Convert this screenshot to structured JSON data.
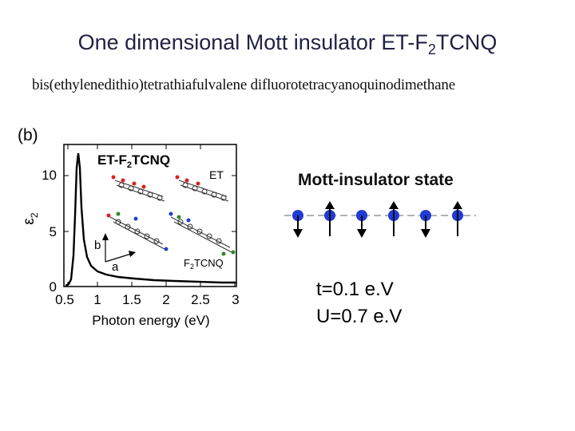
{
  "title": {
    "prefix": "One dimensional Mott insulator ET-F",
    "sub": "2",
    "suffix": "TCNQ"
  },
  "full_name": "bis(ethylenedithio)tetrathiafulvalene difluorotetracyanoquinodimethane",
  "panel_label": "(b)",
  "plot": {
    "inset_title": {
      "prefix": "ET-F",
      "sub": "2",
      "suffix": "TCNQ"
    },
    "label_et": "ET",
    "label_f2tcnq": {
      "prefix": "F",
      "sub": "2",
      "suffix": "TCNQ"
    },
    "axis_b": "b",
    "axis_a": "a",
    "xlabel": "Photon energy (eV)",
    "ylabel_symbol": "ε",
    "ylabel_sub": "2",
    "xticks": [
      "0.5",
      "1",
      "1.5",
      "2",
      "2.5",
      "3"
    ],
    "yticks": [
      "0",
      "5",
      "10"
    ]
  },
  "mott": {
    "title": "Mott-insulator state",
    "spins": [
      "down",
      "up",
      "down",
      "up",
      "down",
      "up"
    ],
    "color": "#1f3bd6"
  },
  "params": {
    "t": "t=0.1 e.V",
    "u": "U=0.7 e.V"
  }
}
